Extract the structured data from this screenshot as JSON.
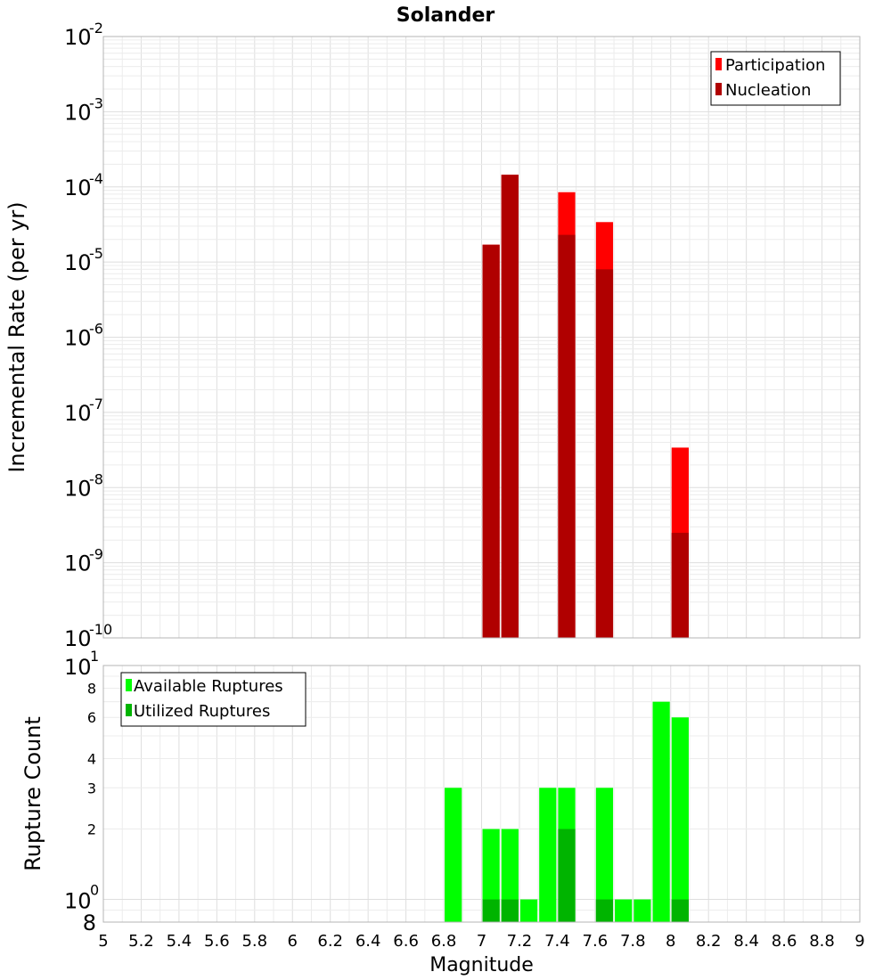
{
  "chart_data": [
    {
      "type": "bar",
      "title": "Solander",
      "xlabel": "",
      "ylabel": "Incremental Rate (per yr)",
      "yscale": "log",
      "xlim": [
        5,
        9
      ],
      "ylim": [
        1e-10,
        0.01
      ],
      "bin_width": 0.1,
      "grid": true,
      "legend_position": "top-right",
      "y_ticks": [
        {
          "base": "10",
          "exp": "-10"
        },
        {
          "base": "10",
          "exp": "-9"
        },
        {
          "base": "10",
          "exp": "-8"
        },
        {
          "base": "10",
          "exp": "-7"
        },
        {
          "base": "10",
          "exp": "-6"
        },
        {
          "base": "10",
          "exp": "-5"
        },
        {
          "base": "10",
          "exp": "-4"
        },
        {
          "base": "10",
          "exp": "-3"
        },
        {
          "base": "10",
          "exp": "-2"
        }
      ],
      "series": [
        {
          "name": "Participation",
          "color": "#ff0000",
          "x": [
            7.05,
            7.15,
            7.45,
            7.65,
            8.05
          ],
          "values": [
            1.7e-05,
            0.000145,
            8.5e-05,
            3.4e-05,
            3.4e-08
          ]
        },
        {
          "name": "Nucleation",
          "color": "#b00000",
          "x": [
            7.05,
            7.15,
            7.45,
            7.65,
            8.05
          ],
          "values": [
            1.7e-05,
            0.000145,
            2.3e-05,
            8e-06,
            2.5e-09
          ]
        }
      ]
    },
    {
      "type": "bar",
      "title": "",
      "xlabel": "Magnitude",
      "ylabel": "Rupture Count",
      "yscale": "log",
      "xlim": [
        5,
        9
      ],
      "ylim": [
        0.8,
        10
      ],
      "bin_width": 0.1,
      "grid": true,
      "legend_position": "top-left",
      "x_ticks": [
        "5",
        "5.2",
        "5.4",
        "5.6",
        "5.8",
        "6",
        "6.2",
        "6.4",
        "6.6",
        "6.8",
        "7",
        "7.2",
        "7.4",
        "7.6",
        "7.8",
        "8",
        "8.2",
        "8.4",
        "8.6",
        "8.8",
        "9"
      ],
      "y_tick_labels": [
        {
          "value": 2,
          "label": "2"
        },
        {
          "value": 3,
          "label": "3"
        },
        {
          "value": 4,
          "label": "4"
        },
        {
          "value": 6,
          "label": "6"
        },
        {
          "value": 8,
          "label": "8"
        }
      ],
      "y_power_ticks": [
        {
          "value": 1,
          "base": "10",
          "exp": "0"
        },
        {
          "value": 10,
          "base": "10",
          "exp": "1"
        }
      ],
      "y_bottom_label": "8",
      "series": [
        {
          "name": "Available Ruptures",
          "color": "#00ff00",
          "x": [
            6.85,
            7.05,
            7.15,
            7.25,
            7.35,
            7.45,
            7.65,
            7.75,
            7.85,
            7.95,
            8.05
          ],
          "values": [
            3,
            2,
            2,
            1,
            3,
            3,
            3,
            1,
            1,
            7,
            6
          ]
        },
        {
          "name": "Utilized Ruptures",
          "color": "#00b400",
          "x": [
            7.05,
            7.15,
            7.45,
            7.65,
            8.05
          ],
          "values": [
            1,
            1,
            2,
            1,
            1
          ]
        }
      ]
    }
  ]
}
